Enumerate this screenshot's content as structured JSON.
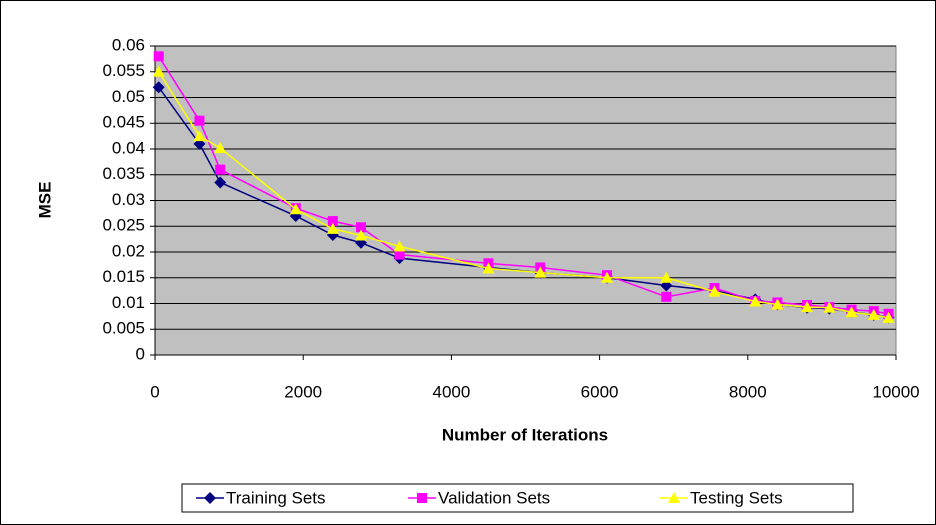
{
  "chart_data": {
    "type": "line",
    "x_label": "Number of Iterations",
    "y_label": "MSE",
    "x": [
      50,
      600,
      880,
      1900,
      2400,
      2780,
      3300,
      4500,
      5200,
      6100,
      6900,
      7550,
      8100,
      8400,
      8800,
      9100,
      9400,
      9700,
      9900
    ],
    "series": [
      {
        "name": "Training Sets",
        "color": "#000080",
        "marker": "diamond",
        "values": [
          0.052,
          0.041,
          0.0335,
          0.027,
          0.0233,
          0.0218,
          0.0188,
          0.017,
          0.016,
          0.015,
          0.0135,
          0.0125,
          0.0108,
          0.0098,
          0.0092,
          0.009,
          0.0084,
          0.0078,
          0.0073
        ]
      },
      {
        "name": "Validation Sets",
        "color": "#ff00ff",
        "marker": "square",
        "values": [
          0.058,
          0.0455,
          0.036,
          0.0285,
          0.026,
          0.0248,
          0.0195,
          0.0178,
          0.017,
          0.0155,
          0.0113,
          0.013,
          0.0105,
          0.0102,
          0.0097,
          0.0093,
          0.0088,
          0.0085,
          0.008
        ]
      },
      {
        "name": "Testing Sets",
        "color": "#ffff00",
        "marker": "triangle",
        "values": [
          0.055,
          0.0425,
          0.0402,
          0.0283,
          0.0245,
          0.0232,
          0.0211,
          0.0168,
          0.016,
          0.015,
          0.015,
          0.0123,
          0.0104,
          0.0098,
          0.0093,
          0.0092,
          0.0083,
          0.0078,
          0.0072
        ]
      }
    ],
    "xlim": [
      0,
      10000
    ],
    "xticks": [
      0,
      2000,
      4000,
      6000,
      8000,
      10000
    ],
    "ylim": [
      0,
      0.06
    ],
    "yticks": [
      0,
      0.005,
      0.01,
      0.015,
      0.02,
      0.025,
      0.03,
      0.035,
      0.04,
      0.045,
      0.05,
      0.055,
      0.06
    ],
    "grid": true,
    "plot_background": "#c0c0c0",
    "legend": "bottom"
  }
}
